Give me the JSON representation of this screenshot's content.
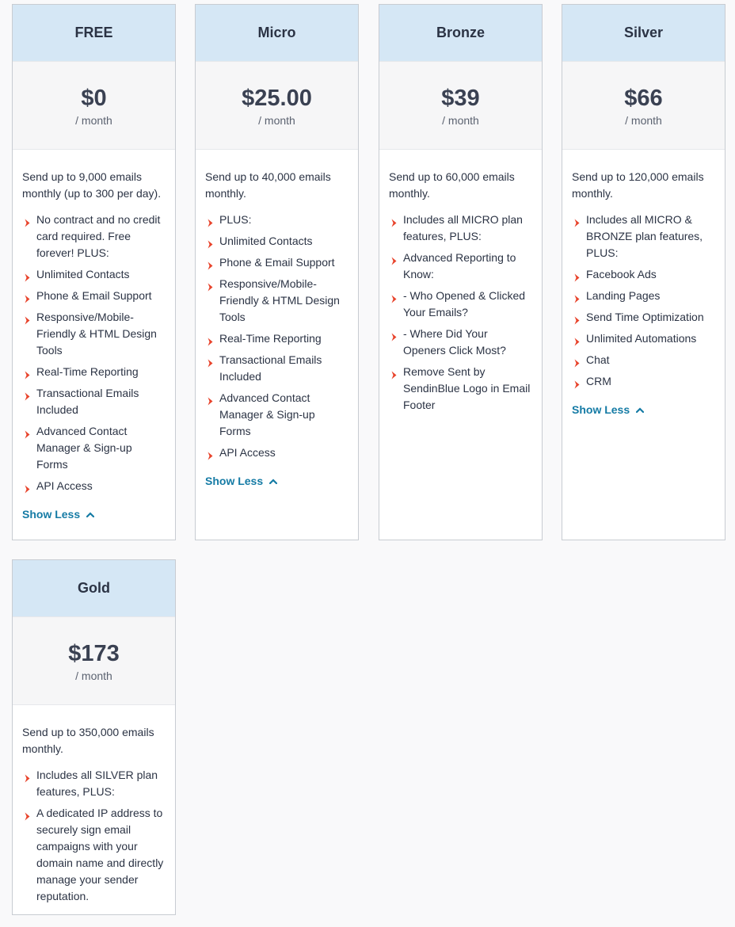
{
  "colors": {
    "header_bg": "#d5e7f5",
    "price_bg": "#f6f6f7",
    "chevron": "#e8442c",
    "link": "#157ba5",
    "page_bg": "#f9f9fa"
  },
  "show_less_label": "Show Less",
  "plans": [
    {
      "name": "FREE",
      "price": "$0",
      "period": "/ month",
      "summary": "Send up to 9,000 emails monthly (up to 300 per day).",
      "features": [
        "No contract and no credit card required. Free forever! PLUS:",
        "Unlimited Contacts",
        "Phone & Email Support",
        "Responsive/Mobile-Friendly & HTML Design Tools",
        "Real-Time Reporting",
        "Transactional Emails Included",
        "Advanced Contact Manager & Sign-up Forms",
        "API Access"
      ],
      "has_toggle": true
    },
    {
      "name": "Micro",
      "price": "$25.00",
      "period": "/ month",
      "summary": "Send up to 40,000 emails monthly.",
      "features": [
        "PLUS:",
        "Unlimited Contacts",
        "Phone & Email Support",
        "Responsive/Mobile-Friendly & HTML Design Tools",
        "Real-Time Reporting",
        "Transactional Emails Included",
        "Advanced Contact Manager & Sign-up Forms",
        "API Access"
      ],
      "has_toggle": true
    },
    {
      "name": "Bronze",
      "price": "$39",
      "period": "/ month",
      "summary": "Send up to 60,000 emails monthly.",
      "features": [
        "Includes all MICRO plan features, PLUS:",
        "Advanced Reporting to Know:",
        "- Who Opened & Clicked Your Emails?",
        "- Where Did Your Openers Click Most?",
        "Remove Sent by SendinBlue Logo in Email Footer"
      ],
      "has_toggle": false
    },
    {
      "name": "Silver",
      "price": "$66",
      "period": "/ month",
      "summary": "Send up to 120,000 emails monthly.",
      "features": [
        "Includes all MICRO & BRONZE plan features, PLUS:",
        "Facebook Ads",
        "Landing Pages",
        "Send Time Optimization",
        "Unlimited Automations",
        "Chat",
        "CRM"
      ],
      "has_toggle": true
    },
    {
      "name": "Gold",
      "price": "$173",
      "period": "/ month",
      "summary": "Send up to 350,000 emails monthly.",
      "features": [
        "Includes all SILVER plan features, PLUS:",
        "A dedicated IP address to securely sign email campaigns with your domain name and directly manage your sender reputation."
      ],
      "has_toggle": false
    }
  ]
}
